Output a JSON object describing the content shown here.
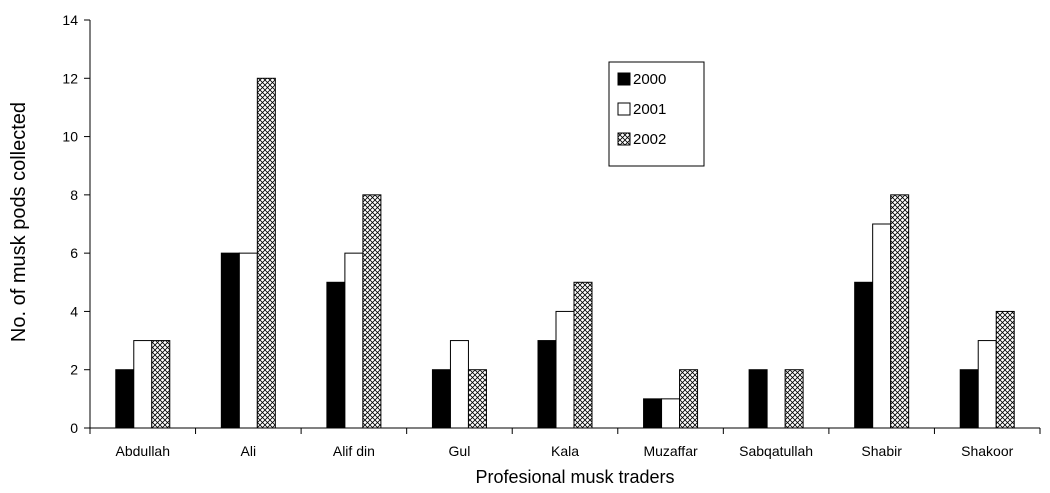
{
  "chart_data": {
    "type": "bar",
    "title": "",
    "xlabel": "Profesional musk traders",
    "ylabel": "No. of musk pods collected",
    "ylim": [
      0,
      14
    ],
    "yticks": [
      0,
      2,
      4,
      6,
      8,
      10,
      12,
      14
    ],
    "grid": false,
    "legend_position": "top-right",
    "categories": [
      "Abdullah",
      "Ali",
      "Alif din",
      "Gul",
      "Kala",
      "Muzaffar",
      "Sabqatullah",
      "Shabir",
      "Shakoor"
    ],
    "series": [
      {
        "name": "2000",
        "fill": "solid-black",
        "values": [
          2,
          6,
          5,
          2,
          3,
          1,
          2,
          5,
          2
        ]
      },
      {
        "name": "2001",
        "fill": "white",
        "values": [
          3,
          6,
          6,
          3,
          4,
          1,
          0,
          7,
          3
        ]
      },
      {
        "name": "2002",
        "fill": "crosshatch",
        "values": [
          3,
          12,
          8,
          2,
          5,
          2,
          2,
          8,
          4
        ]
      }
    ],
    "colors": {
      "ink": "#000000",
      "background": "#ffffff"
    }
  }
}
